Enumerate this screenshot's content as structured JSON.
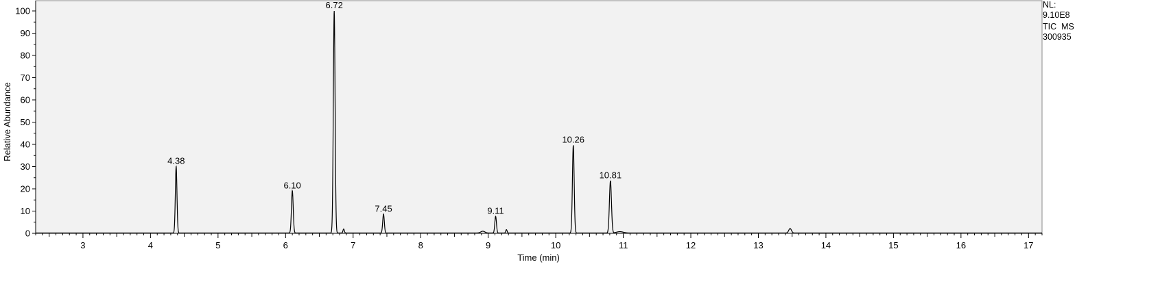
{
  "chart_data": {
    "type": "line",
    "title": "",
    "xlabel": "Time (min)",
    "ylabel": "Relative Abundance",
    "xlim": [
      2.3,
      17.2
    ],
    "ylim": [
      0,
      100
    ],
    "x_ticks": [
      3,
      4,
      5,
      6,
      7,
      8,
      9,
      10,
      11,
      12,
      13,
      14,
      15,
      16,
      17
    ],
    "y_ticks": [
      0,
      10,
      20,
      30,
      40,
      50,
      60,
      70,
      80,
      90,
      100
    ],
    "grid": false,
    "plot_background": "#f2f2f2",
    "line_color": "#000000",
    "peaks": [
      {
        "rt": 4.38,
        "height": 30,
        "label": "4.38",
        "width": 0.012
      },
      {
        "rt": 6.1,
        "height": 19,
        "label": "6.10",
        "width": 0.013
      },
      {
        "rt": 6.72,
        "height": 100,
        "label": "6.72",
        "width": 0.013
      },
      {
        "rt": 6.86,
        "height": 1.8,
        "label": "",
        "width": 0.01
      },
      {
        "rt": 7.45,
        "height": 8.5,
        "label": "7.45",
        "width": 0.012
      },
      {
        "rt": 8.92,
        "height": 0.8,
        "label": "",
        "width": 0.03
      },
      {
        "rt": 9.11,
        "height": 7.5,
        "label": "9.11",
        "width": 0.012
      },
      {
        "rt": 9.27,
        "height": 1.5,
        "label": "",
        "width": 0.01
      },
      {
        "rt": 10.26,
        "height": 39.5,
        "label": "10.26",
        "width": 0.013
      },
      {
        "rt": 10.81,
        "height": 23.5,
        "label": "10.81",
        "width": 0.015
      },
      {
        "rt": 10.95,
        "height": 0.6,
        "label": "",
        "width": 0.05
      },
      {
        "rt": 13.47,
        "height": 2,
        "label": "",
        "width": 0.02
      }
    ]
  },
  "info": {
    "nl_label": "NL:",
    "nl_value": "9.10E8",
    "trace": "TIC  MS",
    "sample": "300935"
  }
}
